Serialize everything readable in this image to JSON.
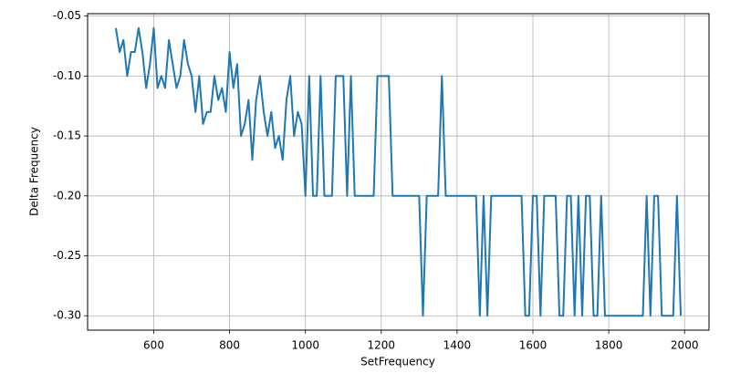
{
  "chart_data": {
    "type": "line",
    "x_label": "SetFrequency",
    "y_label": "Delta Frequency",
    "x": [
      500,
      510,
      520,
      530,
      540,
      550,
      560,
      570,
      580,
      590,
      600,
      610,
      620,
      630,
      640,
      650,
      660,
      670,
      680,
      690,
      700,
      710,
      720,
      730,
      740,
      750,
      760,
      770,
      780,
      790,
      800,
      810,
      820,
      830,
      840,
      850,
      860,
      870,
      880,
      890,
      900,
      910,
      920,
      930,
      940,
      950,
      960,
      970,
      980,
      990,
      1000,
      1010,
      1020,
      1030,
      1040,
      1050,
      1060,
      1070,
      1080,
      1090,
      1100,
      1110,
      1120,
      1130,
      1140,
      1150,
      1160,
      1170,
      1180,
      1190,
      1200,
      1210,
      1220,
      1230,
      1240,
      1250,
      1260,
      1270,
      1280,
      1290,
      1300,
      1310,
      1320,
      1330,
      1340,
      1350,
      1360,
      1370,
      1380,
      1390,
      1400,
      1410,
      1420,
      1430,
      1440,
      1450,
      1460,
      1470,
      1480,
      1490,
      1500,
      1510,
      1520,
      1530,
      1540,
      1550,
      1560,
      1570,
      1580,
      1590,
      1600,
      1610,
      1620,
      1630,
      1640,
      1650,
      1660,
      1670,
      1680,
      1690,
      1700,
      1710,
      1720,
      1730,
      1740,
      1750,
      1760,
      1770,
      1780,
      1790,
      1800,
      1810,
      1820,
      1830,
      1840,
      1850,
      1860,
      1870,
      1880,
      1890,
      1900,
      1910,
      1920,
      1930,
      1940,
      1950,
      1960,
      1970,
      1980,
      1990
    ],
    "values": [
      -0.06,
      -0.08,
      -0.07,
      -0.1,
      -0.08,
      -0.08,
      -0.06,
      -0.08,
      -0.11,
      -0.09,
      -0.06,
      -0.11,
      -0.1,
      -0.11,
      -0.07,
      -0.09,
      -0.11,
      -0.1,
      -0.07,
      -0.09,
      -0.1,
      -0.13,
      -0.1,
      -0.14,
      -0.13,
      -0.13,
      -0.1,
      -0.12,
      -0.11,
      -0.13,
      -0.08,
      -0.11,
      -0.09,
      -0.15,
      -0.14,
      -0.12,
      -0.17,
      -0.12,
      -0.1,
      -0.13,
      -0.15,
      -0.13,
      -0.16,
      -0.15,
      -0.17,
      -0.12,
      -0.1,
      -0.15,
      -0.13,
      -0.14,
      -0.2,
      -0.1,
      -0.2,
      -0.2,
      -0.1,
      -0.2,
      -0.2,
      -0.2,
      -0.1,
      -0.1,
      -0.1,
      -0.2,
      -0.1,
      -0.2,
      -0.2,
      -0.2,
      -0.2,
      -0.2,
      -0.2,
      -0.1,
      -0.1,
      -0.1,
      -0.1,
      -0.2,
      -0.2,
      -0.2,
      -0.2,
      -0.2,
      -0.2,
      -0.2,
      -0.2,
      -0.3,
      -0.2,
      -0.2,
      -0.2,
      -0.2,
      -0.1,
      -0.2,
      -0.2,
      -0.2,
      -0.2,
      -0.2,
      -0.2,
      -0.2,
      -0.2,
      -0.2,
      -0.3,
      -0.2,
      -0.3,
      -0.2,
      -0.2,
      -0.2,
      -0.2,
      -0.2,
      -0.2,
      -0.2,
      -0.2,
      -0.2,
      -0.3,
      -0.3,
      -0.2,
      -0.2,
      -0.3,
      -0.2,
      -0.2,
      -0.2,
      -0.2,
      -0.3,
      -0.3,
      -0.2,
      -0.2,
      -0.3,
      -0.2,
      -0.3,
      -0.2,
      -0.2,
      -0.3,
      -0.3,
      -0.2,
      -0.3,
      -0.3,
      -0.3,
      -0.3,
      -0.3,
      -0.3,
      -0.3,
      -0.3,
      -0.3,
      -0.3,
      -0.3,
      -0.2,
      -0.3,
      -0.2,
      -0.2,
      -0.3,
      -0.3,
      -0.3,
      -0.3,
      -0.2,
      -0.3
    ],
    "color": "#1f77b4",
    "xlim": [
      425.5,
      2064.5
    ],
    "ylim": [
      -0.312,
      -0.048
    ],
    "xticks": [
      600,
      800,
      1000,
      1200,
      1400,
      1600,
      1800,
      2000
    ],
    "yticks": [
      {
        "value": -0.3,
        "label": "-0.30"
      },
      {
        "value": -0.25,
        "label": "-0.25"
      },
      {
        "value": -0.2,
        "label": "-0.20"
      },
      {
        "value": -0.15,
        "label": "-0.15"
      },
      {
        "value": -0.1,
        "label": "-0.10"
      },
      {
        "value": -0.05,
        "label": "-0.05"
      }
    ],
    "grid": true
  }
}
